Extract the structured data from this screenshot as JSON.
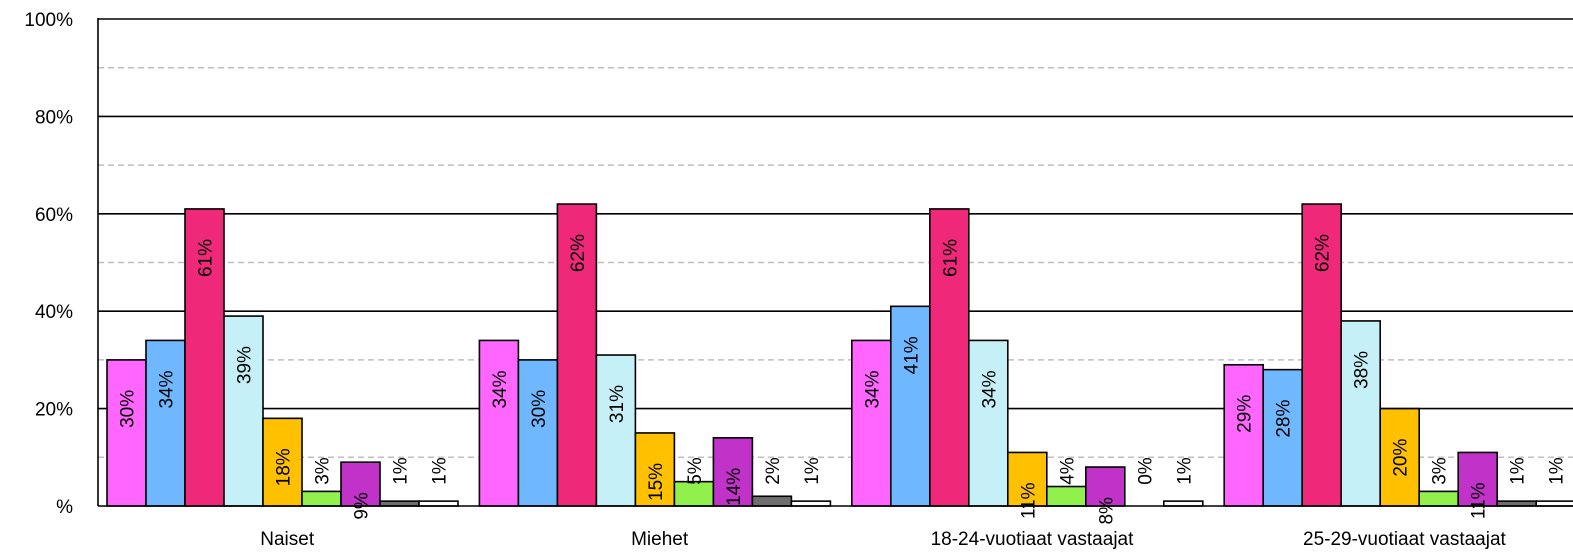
{
  "chart_data": {
    "type": "bar",
    "categories": [
      "Naiset",
      "Miehet",
      "18-24-vuotiaat vastaajat",
      "25-29-vuotiaat vastaajat"
    ],
    "series": [
      {
        "color": "#ff66ff",
        "values": [
          30,
          34,
          34,
          29
        ]
      },
      {
        "color": "#6fb8ff",
        "values": [
          34,
          30,
          41,
          28
        ]
      },
      {
        "color": "#f0287a",
        "values": [
          61,
          62,
          61,
          62
        ]
      },
      {
        "color": "#c6f0f8",
        "values": [
          39,
          31,
          34,
          38
        ]
      },
      {
        "color": "#ffc000",
        "values": [
          18,
          15,
          11,
          20
        ]
      },
      {
        "color": "#92f04c",
        "values": [
          3,
          5,
          4,
          3
        ]
      },
      {
        "color": "#c032c8",
        "values": [
          9,
          14,
          8,
          11
        ]
      },
      {
        "color": "#6e6e6e",
        "values": [
          1,
          2,
          0,
          1
        ]
      },
      {
        "color": "#ffffff",
        "values": [
          1,
          1,
          1,
          1
        ]
      }
    ],
    "value_suffix": "%",
    "ylim": [
      0,
      100
    ],
    "y_ticks": [
      {
        "value": 0,
        "label": "%"
      },
      {
        "value": 20,
        "label": "20%"
      },
      {
        "value": 40,
        "label": "40%"
      },
      {
        "value": 60,
        "label": "60%"
      },
      {
        "value": 80,
        "label": "80%"
      },
      {
        "value": 100,
        "label": "100%"
      }
    ],
    "minor_gridlines": [
      10,
      30,
      50,
      70,
      90
    ],
    "grid": true,
    "legend": "none"
  }
}
